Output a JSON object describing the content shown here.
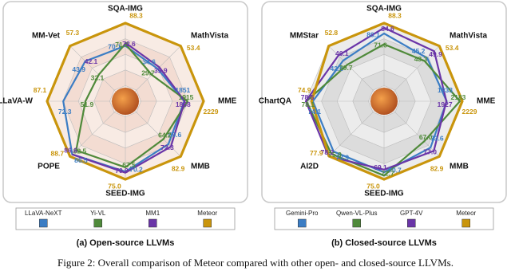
{
  "caption": "Figure 2: Overall comparison of Meteor compared with other open- and closed-source LLVMs.",
  "chart_data": [
    {
      "type": "radar",
      "title": "(a) Open-source LLVMs",
      "categories": [
        "SQA-IMG",
        "MathVista",
        "MME",
        "MMB",
        "SEED-IMG",
        "POPE",
        "LLaVA-W",
        "MM-Vet"
      ],
      "series": [
        {
          "name": "LLaVA-NeXT",
          "color": "#3b7dc4",
          "values": [
            70.1,
            34.6,
            1851,
            69.6,
            70.2,
            86.5,
            72.3,
            43.9
          ]
        },
        {
          "name": "Yi-VL",
          "color": "#4f8a3a",
          "values": [
            71.7,
            29.7,
            1915,
            64.2,
            67.5,
            82.5,
            51.9,
            32.1
          ]
        },
        {
          "name": "MM1",
          "color": "#6a35a8",
          "values": [
            72.6,
            35.9,
            1858,
            72.3,
            70.9,
            86.6,
            null,
            42.1
          ]
        },
        {
          "name": "Meteor",
          "color": "#c9950c",
          "values": [
            88.3,
            53.4,
            2229,
            82.9,
            75,
            88.7,
            87.1,
            57.3
          ],
          "value_labels": [
            "88.3",
            "53.4",
            "2229",
            "82.9",
            "75.0",
            "88.7",
            "87.1",
            "57.3"
          ]
        }
      ]
    },
    {
      "type": "radar",
      "title": "(b) Closed-source LLVMs",
      "categories": [
        "SQA-IMG",
        "MathVista",
        "MME",
        "MMB",
        "SEED-IMG",
        "AI2D",
        "ChartQA",
        "MMStar"
      ],
      "series": [
        {
          "name": "Gemini-Pro",
          "color": "#3b7dc4",
          "values": [
            80.1,
            45.2,
            1933,
            73.6,
            70.7,
            73.9,
            74.1,
            42.6
          ]
        },
        {
          "name": "Qwen-VL-Plus",
          "color": "#4f8a3a",
          "values": [
            71.6,
            43.3,
            2183,
            67,
            72.7,
            75.9,
            78.1,
            39.7
          ],
          "value_labels": [
            "71.6",
            "43.3",
            "2183",
            "67.0",
            "72.7",
            "75.9",
            "78.1",
            "39.7"
          ]
        },
        {
          "name": "GPT-4V",
          "color": "#6a35a8",
          "values": [
            84.6,
            49.9,
            1927,
            77,
            69.1,
            78.2,
            78.5,
            46.1
          ],
          "value_labels": [
            "84.6",
            "49.9",
            "1927",
            "77.0",
            "69.1",
            "78.2",
            "78.5",
            "46.1"
          ]
        },
        {
          "name": "Meteor",
          "color": "#c9950c",
          "values": [
            88.3,
            53.4,
            2229,
            82.9,
            75,
            77.9,
            74.9,
            52.8
          ],
          "value_labels": [
            "88.3",
            "53.4",
            "2229",
            "82.9",
            "75.0",
            "77.9",
            "74.9",
            "52.8"
          ]
        }
      ]
    }
  ]
}
